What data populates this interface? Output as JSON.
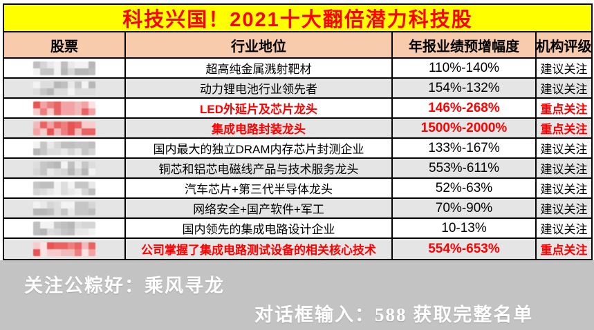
{
  "title": "科技兴国！2021十大翻倍潜力科技股",
  "table": {
    "headers": [
      "股票",
      "行业地位",
      "年报业绩预增幅度",
      "机构评级"
    ],
    "rows": [
      {
        "stock_name_redacted": true,
        "mask_color": "gray",
        "industry": "超高纯金属溅射靶材",
        "growth": "110%-140%",
        "rating": "建议关注",
        "highlight": false
      },
      {
        "stock_name_redacted": true,
        "mask_color": "gray",
        "industry": "动力锂电池行业领先者",
        "growth": "154%-132%",
        "rating": "建议关注",
        "highlight": false
      },
      {
        "stock_name_redacted": true,
        "mask_color": "red",
        "industry": "LED外延片及芯片龙头",
        "growth": "146%-268%",
        "rating": "重点关注",
        "highlight": true
      },
      {
        "stock_name_redacted": true,
        "mask_color": "red",
        "industry": "集成电路封装龙头",
        "growth": "1500%-2000%",
        "rating": "重点关注",
        "highlight": true
      },
      {
        "stock_name_redacted": true,
        "mask_color": "gray",
        "industry": "国内最大的独立DRAM内存芯片封测企业",
        "growth": "133%-167%",
        "rating": "建议关注",
        "highlight": false
      },
      {
        "stock_name_redacted": true,
        "mask_color": "gray",
        "industry": "铜芯和铝芯电磁线产品与技术服务龙头",
        "growth": "553%-611%",
        "rating": "建议关注",
        "highlight": false
      },
      {
        "stock_name_redacted": true,
        "mask_color": "gray",
        "industry": "汽车芯片+第三代半导体龙头",
        "growth": "52%-63%",
        "rating": "建议关注",
        "highlight": false
      },
      {
        "stock_name_redacted": true,
        "mask_color": "gray",
        "industry": "网络安全+国产软件+军工",
        "growth": "70%-90%",
        "rating": "建议关注",
        "highlight": false
      },
      {
        "stock_name_redacted": true,
        "mask_color": "gray",
        "industry": "国内领先的集成电路设计企业",
        "growth": "10-13%",
        "rating": "建议关注",
        "highlight": false
      },
      {
        "stock_name_redacted": true,
        "mask_color": "red",
        "industry": "公司掌握了集成电路测试设备的相关核心技术",
        "growth": "554%-653%",
        "rating": "重点关注",
        "highlight": true
      }
    ]
  },
  "footer": {
    "line1": "关注公粽好：乘风寻龙",
    "line2": "对话框输入：588 获取完整名单"
  },
  "colors": {
    "title_bg": "#ffff00",
    "title_text": "#ff0000",
    "header_bg": "#f8cbad",
    "row_alt_bg": "#e6e5e5",
    "highlight_text": "#ff0000",
    "footer_bg": "#c3c3c3",
    "footer_text": "#ffffff",
    "border": "#000000"
  }
}
